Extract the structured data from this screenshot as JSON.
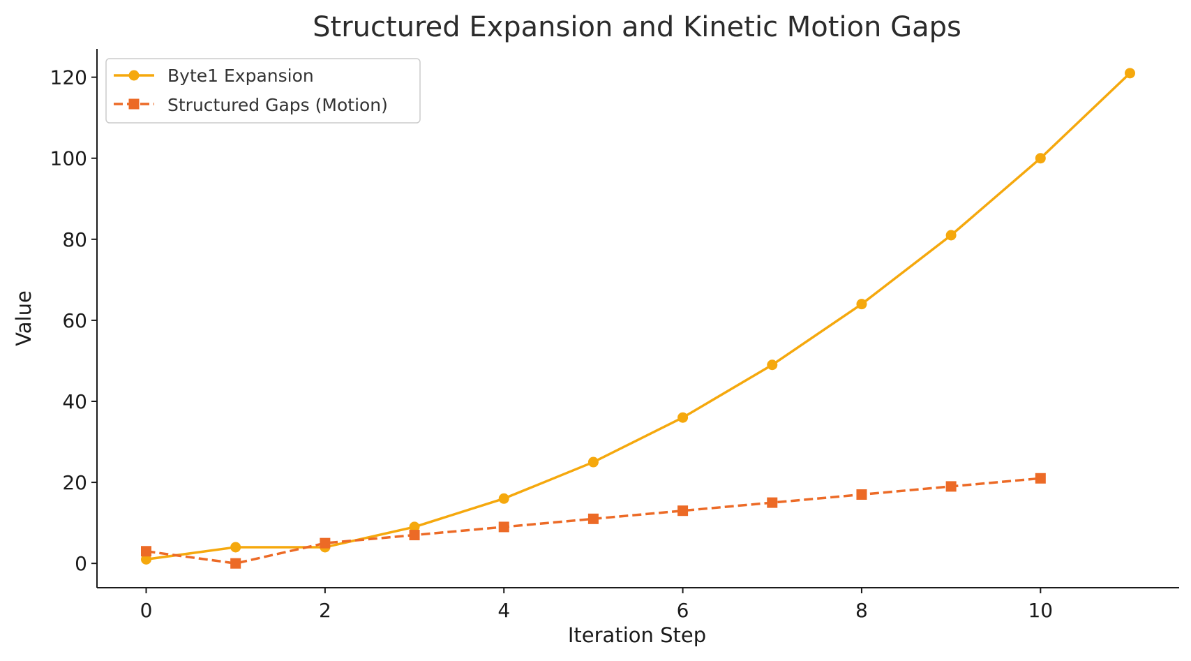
{
  "chart_data": {
    "type": "line",
    "title": "Structured Expansion and Kinetic Motion Gaps",
    "xlabel": "Iteration Step",
    "ylabel": "Value",
    "xlim": [
      -0.55,
      11.55
    ],
    "ylim": [
      -6,
      127
    ],
    "xticks": [
      0,
      2,
      4,
      6,
      8,
      10
    ],
    "yticks": [
      0,
      20,
      40,
      60,
      80,
      100,
      120
    ],
    "grid": false,
    "legend_position": "top-left",
    "series": [
      {
        "name": "Byte1 Expansion",
        "color": "#f5a80d",
        "line_style": "solid",
        "marker": "circle",
        "x": [
          0,
          1,
          2,
          3,
          4,
          5,
          6,
          7,
          8,
          9,
          10,
          11
        ],
        "y": [
          1,
          4,
          4,
          9,
          16,
          25,
          36,
          49,
          64,
          81,
          100,
          121
        ]
      },
      {
        "name": "Structured Gaps (Motion)",
        "color": "#ec6a26",
        "line_style": "dashed",
        "marker": "square",
        "x": [
          0,
          1,
          2,
          3,
          4,
          5,
          6,
          7,
          8,
          9,
          10
        ],
        "y": [
          3,
          0,
          5,
          7,
          9,
          11,
          13,
          15,
          17,
          19,
          21
        ]
      }
    ]
  }
}
